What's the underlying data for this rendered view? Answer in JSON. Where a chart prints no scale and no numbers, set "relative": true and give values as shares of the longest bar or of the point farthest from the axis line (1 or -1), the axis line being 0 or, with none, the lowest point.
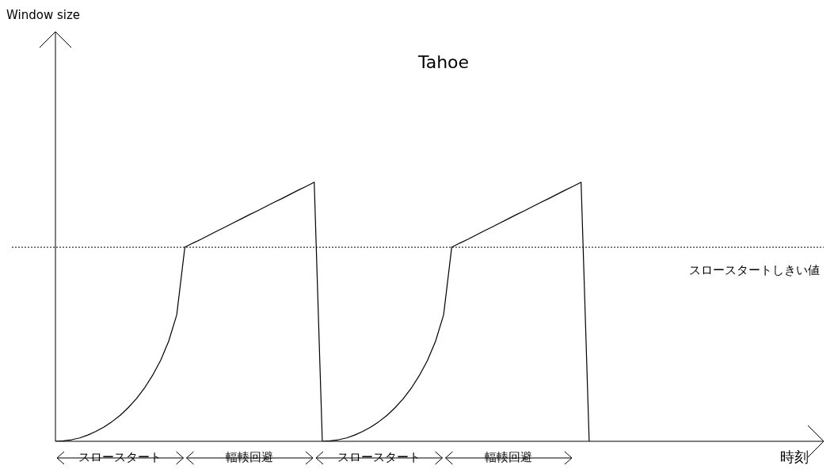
{
  "chart_data": {
    "type": "line",
    "title": "Tahoe",
    "xlabel": "時刻",
    "relative": true,
    "legend": false,
    "marker": "none",
    "categories": [
      null,
      null,
      null,
      null,
      null,
      null,
      null,
      null,
      null,
      null,
      null,
      null,
      null,
      null,
      null,
      null,
      null,
      null,
      null,
      null,
      null,
      null,
      null,
      null,
      null,
      null,
      null,
      null,
      null,
      null,
      null,
      null,
      null,
      null,
      null,
      null,
      null,
      null,
      null,
      null,
      null,
      null,
      null,
      null,
      null,
      null,
      null,
      null,
      null,
      null,
      null,
      null,
      null,
      null,
      null,
      null,
      null,
      null,
      null,
      null,
      null,
      null,
      null,
      null,
      null,
      null,
      null,
      null,
      null,
      null,
      null,
      null,
      null,
      null,
      null,
      null,
      null,
      null,
      null,
      null,
      null,
      null,
      null,
      null,
      null,
      null,
      null,
      null,
      null,
      null,
      null,
      null,
      null,
      null,
      null,
      null
    ],
    "series": [
      {
        "color": "#000000",
        "values": [
          0,
          0.002,
          0.006,
          0.013,
          0.024,
          0.038,
          0.055,
          0.076,
          0.1,
          0.13,
          0.164,
          0.205,
          0.254,
          0.312,
          0.386,
          0.488,
          0.749,
          0.765,
          0.78,
          0.796,
          0.812,
          0.827,
          0.843,
          0.859,
          0.875,
          0.89,
          0.906,
          0.922,
          0.937,
          0.953,
          0.969,
          0.984,
          1,
          0,
          0.002,
          0.006,
          0.013,
          0.024,
          0.038,
          0.055,
          0.076,
          0.1,
          0.13,
          0.164,
          0.205,
          0.254,
          0.312,
          0.386,
          0.488,
          0.749,
          0.765,
          0.78,
          0.796,
          0.812,
          0.827,
          0.843,
          0.859,
          0.875,
          0.89,
          0.906,
          0.922,
          0.937,
          0.953,
          0.969,
          0.984,
          1,
          0,
          null,
          null,
          null,
          null,
          null,
          null,
          null,
          null,
          null,
          null,
          null,
          null,
          null,
          null,
          null,
          null,
          null,
          null,
          null,
          null,
          null,
          null,
          null,
          null,
          null,
          null,
          null,
          null,
          null
        ]
      }
    ],
    "ref_lines": [
      {
        "axis": "y",
        "value": 0.749,
        "label": "スロースタートしきい値",
        "line_style": "dotted",
        "color": "#000000"
      }
    ],
    "annotations": [
      "スロースタート",
      "輻輳回避",
      "スロースタート",
      "輻輳回避",
      "Window size"
    ]
  }
}
